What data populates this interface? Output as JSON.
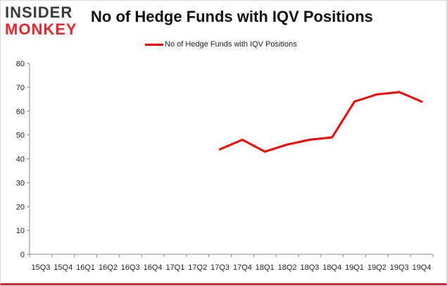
{
  "logo": {
    "line1": "INSIDER",
    "line2": "MONKEY"
  },
  "chart_data": {
    "type": "line",
    "title": "No of Hedge Funds with IQV Positions",
    "xlabel": "",
    "ylabel": "",
    "categories": [
      "15Q3",
      "15Q4",
      "16Q1",
      "16Q2",
      "16Q3",
      "16Q4",
      "17Q1",
      "17Q2",
      "17Q3",
      "17Q4",
      "18Q1",
      "18Q2",
      "18Q3",
      "18Q4",
      "19Q1",
      "19Q2",
      "19Q3",
      "19Q4"
    ],
    "series": [
      {
        "name": "No of Hedge Funds with IQV Positions",
        "values": [
          null,
          null,
          null,
          null,
          null,
          null,
          null,
          null,
          44,
          48,
          43,
          46,
          48,
          49,
          64,
          67,
          68,
          64
        ],
        "color": "#ff0000"
      }
    ],
    "ylim": [
      0,
      80
    ],
    "yticks": [
      0,
      10,
      20,
      30,
      40,
      50,
      60,
      70,
      80
    ],
    "grid": false,
    "legend_position": "top-center"
  }
}
